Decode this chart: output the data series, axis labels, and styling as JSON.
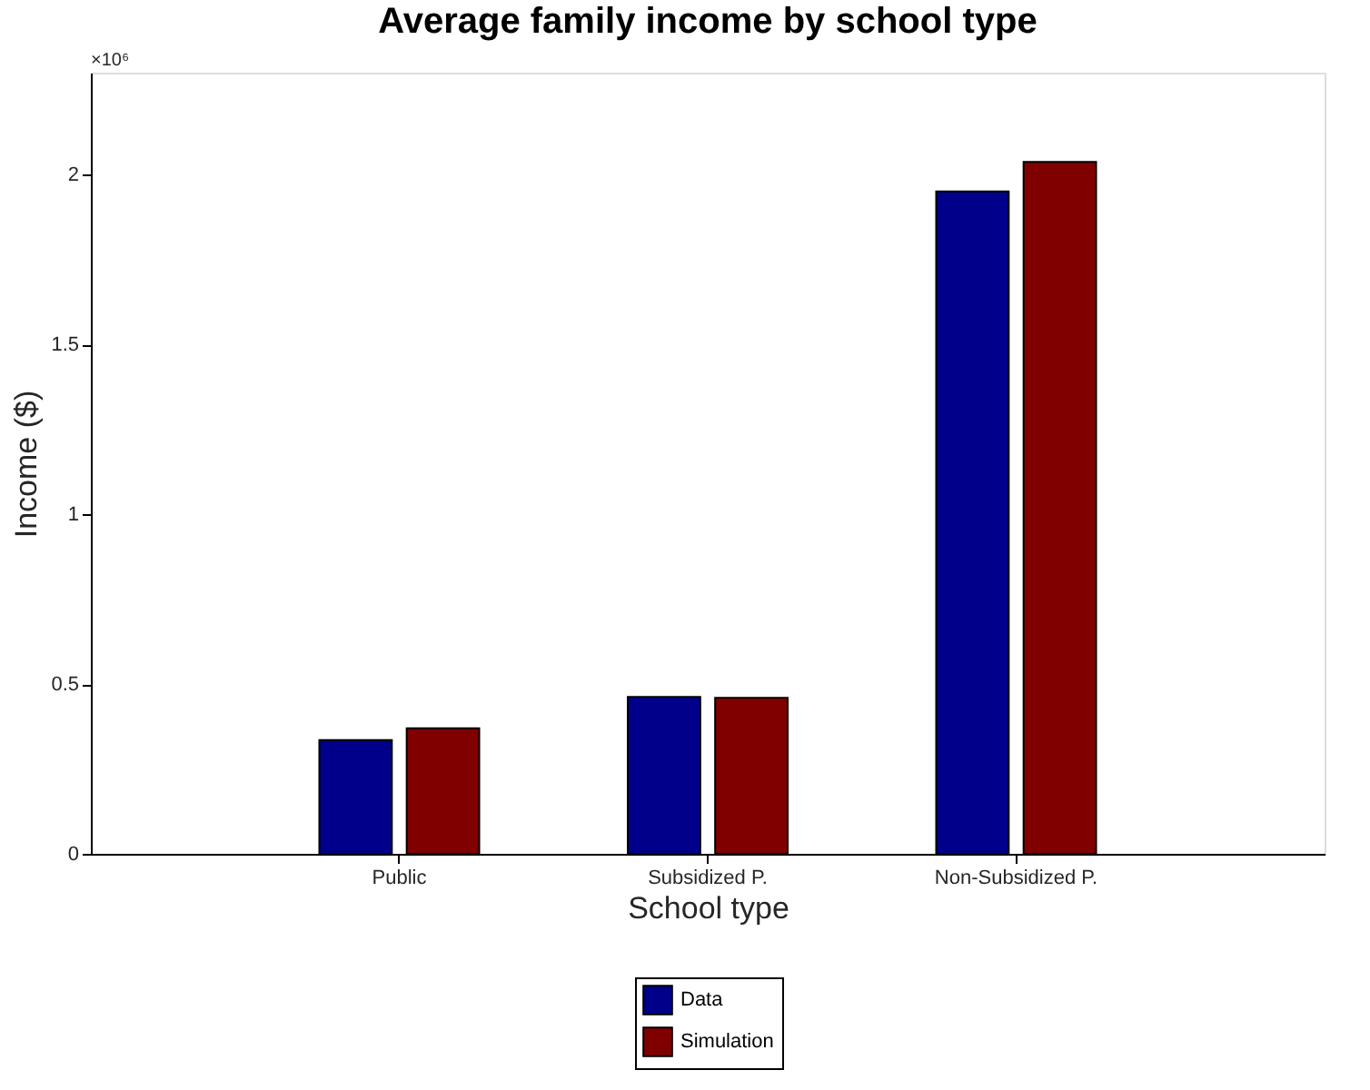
{
  "chart_data": {
    "type": "bar",
    "title": "Average family income by school type",
    "xlabel": "School type",
    "ylabel": "Income ($)",
    "categories": [
      "Public",
      "Subsidized P.",
      "Non-Subsidized P."
    ],
    "series": [
      {
        "name": "Data",
        "color": "#00008b",
        "values": [
          0.335,
          0.462,
          1.95
        ]
      },
      {
        "name": "Simulation",
        "color": "#800000",
        "values": [
          0.37,
          0.459,
          2.037
        ]
      }
    ],
    "ylim": [
      0,
      2.3
    ],
    "yticks": [
      0,
      0.5,
      1,
      1.5,
      2
    ],
    "annotations": [
      "×10⁶"
    ],
    "legend": "bottom",
    "grid": false
  }
}
